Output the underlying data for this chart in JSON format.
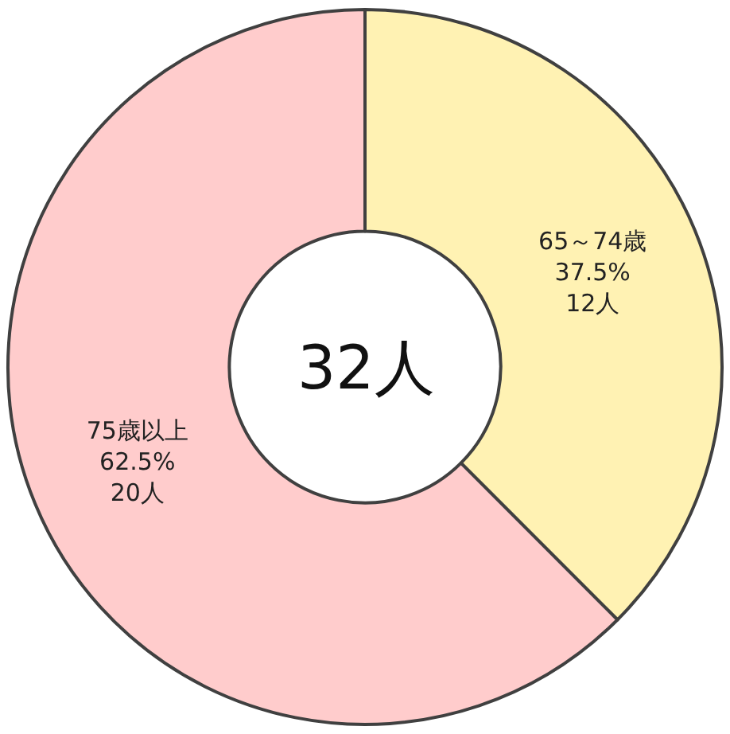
{
  "chart_data": {
    "type": "donut",
    "categories": [
      "65～74歳",
      "75歳以上"
    ],
    "values": [
      12,
      20
    ],
    "value_labels": [
      "37.5%\n12人",
      "62.5%\n20人"
    ],
    "colors": [
      "#fff2b3",
      "#ffcccc"
    ],
    "annotations": [
      "32人"
    ]
  }
}
